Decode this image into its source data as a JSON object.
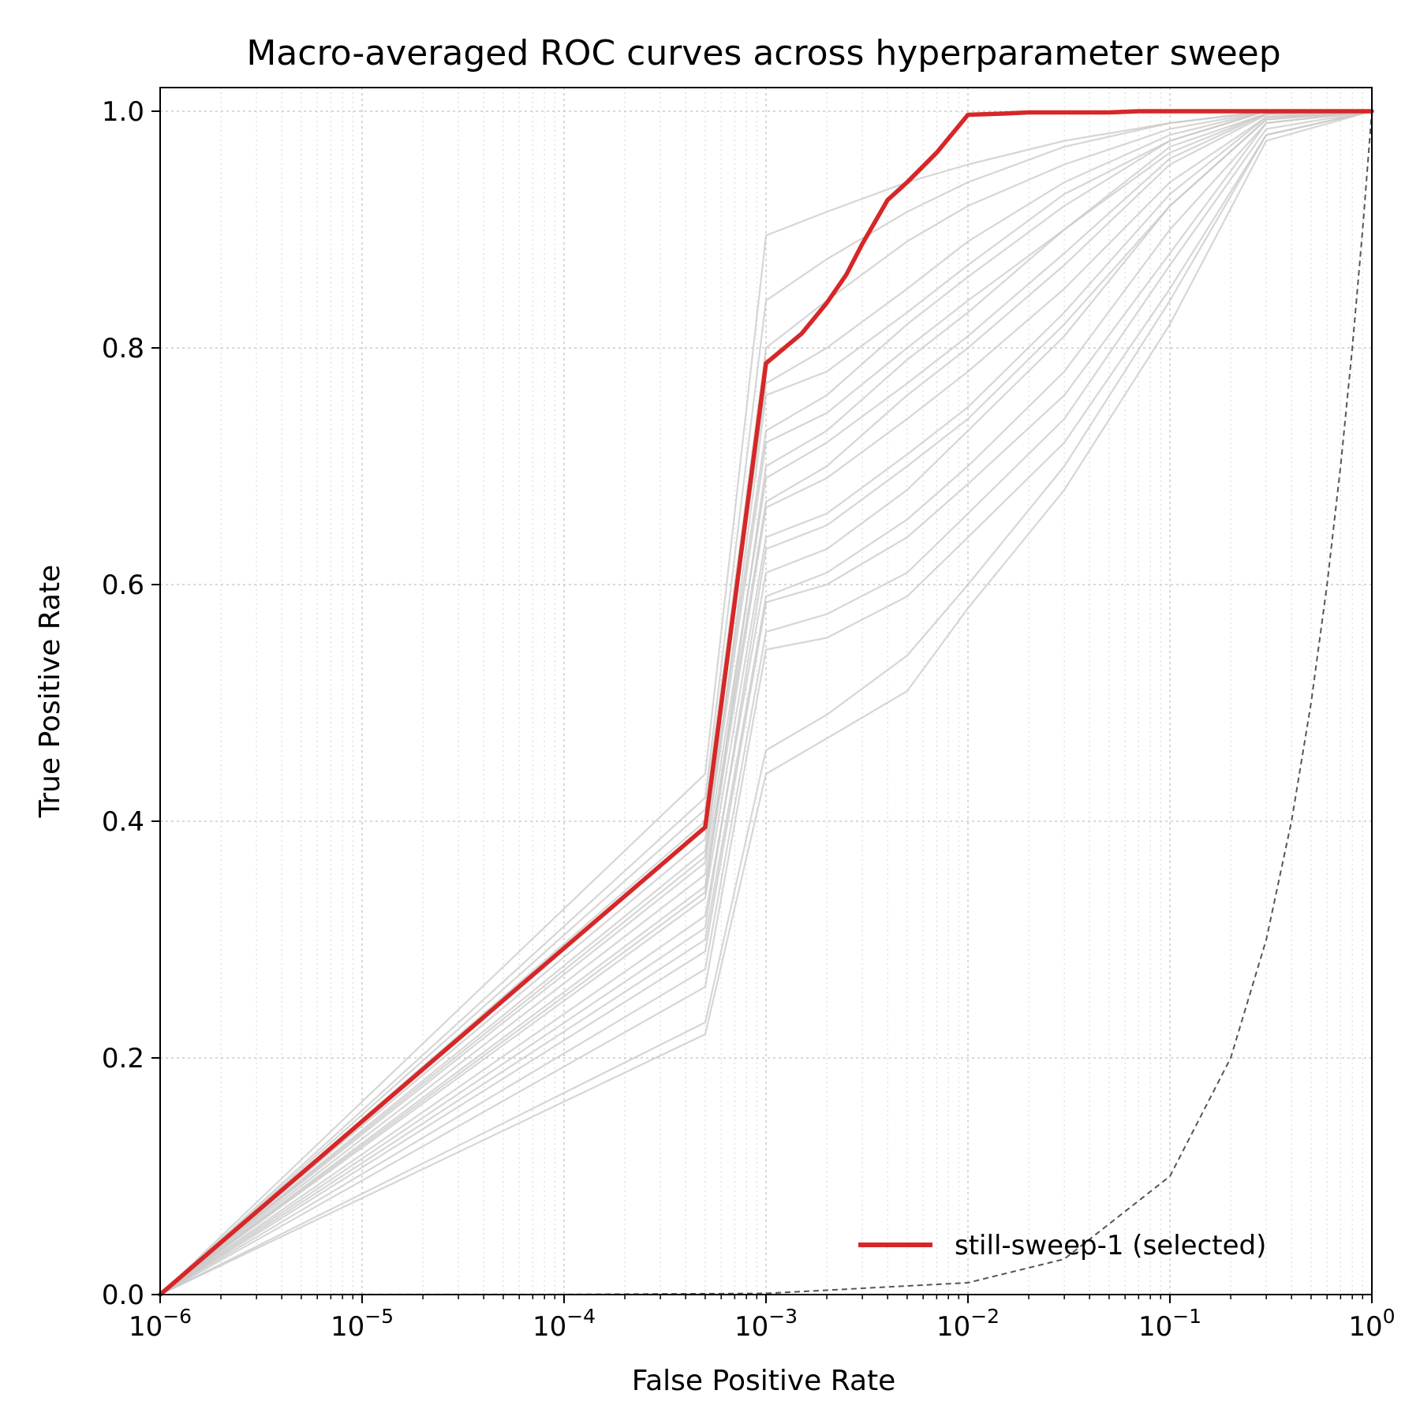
{
  "chart_data": {
    "type": "line",
    "title": "Macro-averaged ROC curves across hyperparameter sweep",
    "xlabel": "False Positive Rate",
    "ylabel": "True Positive Rate",
    "xscale": "log",
    "xlim": [
      1e-06,
      1
    ],
    "ylim": [
      0,
      1.02
    ],
    "grid": "on (dotted, major and minor)",
    "legend": {
      "placement": "lower-right",
      "entries": [
        "still-sweep-1 (selected)"
      ]
    },
    "x_ticks": [
      {
        "value": 1e-06,
        "base": "10",
        "exp": "−6"
      },
      {
        "value": 1e-05,
        "base": "10",
        "exp": "−5"
      },
      {
        "value": 0.0001,
        "base": "10",
        "exp": "−4"
      },
      {
        "value": 0.001,
        "base": "10",
        "exp": "−3"
      },
      {
        "value": 0.01,
        "base": "10",
        "exp": "−2"
      },
      {
        "value": 0.1,
        "base": "10",
        "exp": "−1"
      },
      {
        "value": 1,
        "base": "10",
        "exp": "0"
      }
    ],
    "y_ticks": [
      {
        "value": 0.0,
        "label": "0.0"
      },
      {
        "value": 0.2,
        "label": "0.2"
      },
      {
        "value": 0.4,
        "label": "0.4"
      },
      {
        "value": 0.6,
        "label": "0.6"
      },
      {
        "value": 0.8,
        "label": "0.8"
      },
      {
        "value": 1.0,
        "label": "1.0"
      }
    ],
    "selected_series": {
      "name": "still-sweep-1 (selected)",
      "color": "#d62728",
      "x": [
        1e-06,
        0.0005,
        0.001,
        0.0015,
        0.002,
        0.0025,
        0.003,
        0.004,
        0.005,
        0.007,
        0.01,
        0.015,
        0.02,
        0.05,
        0.07,
        0.1,
        0.2,
        0.5,
        1
      ],
      "y": [
        0.0,
        0.395,
        0.787,
        0.812,
        0.838,
        0.862,
        0.888,
        0.925,
        0.94,
        0.965,
        0.997,
        0.998,
        0.999,
        0.999,
        1.0,
        1.0,
        1.0,
        1.0,
        1.0
      ]
    },
    "sweep_series_color": "#c8c8c8",
    "sweep_series": [
      {
        "x": [
          1e-06,
          0.0005,
          0.001,
          0.002,
          0.005,
          0.01,
          0.03,
          0.1,
          0.3,
          1
        ],
        "y": [
          0.0,
          0.44,
          0.895,
          0.915,
          0.94,
          0.955,
          0.975,
          0.99,
          1.0,
          1.0
        ]
      },
      {
        "x": [
          1e-06,
          0.0005,
          0.001,
          0.002,
          0.005,
          0.01,
          0.03,
          0.1,
          0.3,
          1
        ],
        "y": [
          0.0,
          0.42,
          0.84,
          0.875,
          0.915,
          0.94,
          0.97,
          0.99,
          1.0,
          1.0
        ]
      },
      {
        "x": [
          1e-06,
          0.0005,
          0.001,
          0.002,
          0.005,
          0.01,
          0.03,
          0.1,
          0.3,
          1
        ],
        "y": [
          0.0,
          0.41,
          0.8,
          0.84,
          0.89,
          0.92,
          0.955,
          0.985,
          1.0,
          1.0
        ]
      },
      {
        "x": [
          1e-06,
          0.0005,
          0.001,
          0.002,
          0.005,
          0.01,
          0.03,
          0.1,
          0.3,
          1
        ],
        "y": [
          0.0,
          0.4,
          0.77,
          0.8,
          0.85,
          0.89,
          0.94,
          0.98,
          1.0,
          1.0
        ]
      },
      {
        "x": [
          1e-06,
          0.0005,
          0.001,
          0.002,
          0.005,
          0.01,
          0.03,
          0.1,
          0.3,
          1
        ],
        "y": [
          0.0,
          0.385,
          0.73,
          0.76,
          0.82,
          0.86,
          0.92,
          0.975,
          1.0,
          1.0
        ]
      },
      {
        "x": [
          1e-06,
          0.0005,
          0.001,
          0.002,
          0.005,
          0.01,
          0.03,
          0.1,
          0.3,
          1
        ],
        "y": [
          0.0,
          0.375,
          0.72,
          0.745,
          0.8,
          0.84,
          0.9,
          0.97,
          0.998,
          1.0
        ]
      },
      {
        "x": [
          1e-06,
          0.0005,
          0.001,
          0.002,
          0.005,
          0.01,
          0.03,
          0.1,
          0.3,
          1
        ],
        "y": [
          0.0,
          0.365,
          0.69,
          0.72,
          0.77,
          0.81,
          0.88,
          0.96,
          0.998,
          1.0
        ]
      },
      {
        "x": [
          1e-06,
          0.0005,
          0.001,
          0.002,
          0.005,
          0.01,
          0.03,
          0.1,
          0.3,
          1
        ],
        "y": [
          0.0,
          0.355,
          0.67,
          0.7,
          0.76,
          0.8,
          0.87,
          0.955,
          0.997,
          1.0
        ]
      },
      {
        "x": [
          1e-06,
          0.0005,
          0.001,
          0.002,
          0.005,
          0.01,
          0.03,
          0.1,
          0.3,
          1
        ],
        "y": [
          0.0,
          0.345,
          0.665,
          0.69,
          0.74,
          0.78,
          0.85,
          0.94,
          0.995,
          1.0
        ]
      },
      {
        "x": [
          1e-06,
          0.0005,
          0.001,
          0.002,
          0.005,
          0.01,
          0.03,
          0.1,
          0.3,
          1
        ],
        "y": [
          0.0,
          0.335,
          0.64,
          0.66,
          0.71,
          0.75,
          0.83,
          0.93,
          0.995,
          1.0
        ]
      },
      {
        "x": [
          1e-06,
          0.0005,
          0.001,
          0.002,
          0.005,
          0.01,
          0.03,
          0.1,
          0.3,
          1
        ],
        "y": [
          0.0,
          0.32,
          0.61,
          0.63,
          0.68,
          0.73,
          0.81,
          0.92,
          0.993,
          1.0
        ]
      },
      {
        "x": [
          1e-06,
          0.0005,
          0.001,
          0.002,
          0.005,
          0.01,
          0.03,
          0.1,
          0.3,
          1
        ],
        "y": [
          0.0,
          0.3,
          0.59,
          0.61,
          0.655,
          0.7,
          0.78,
          0.9,
          0.99,
          1.0
        ]
      },
      {
        "x": [
          1e-06,
          0.0005,
          0.001,
          0.002,
          0.005,
          0.01,
          0.03,
          0.1,
          0.3,
          1
        ],
        "y": [
          0.0,
          0.29,
          0.585,
          0.6,
          0.64,
          0.685,
          0.76,
          0.88,
          0.99,
          1.0
        ]
      },
      {
        "x": [
          1e-06,
          0.0005,
          0.001,
          0.002,
          0.005,
          0.01,
          0.03,
          0.1,
          0.3,
          1
        ],
        "y": [
          0.0,
          0.275,
          0.56,
          0.575,
          0.61,
          0.66,
          0.74,
          0.87,
          0.985,
          1.0
        ]
      },
      {
        "x": [
          1e-06,
          0.0005,
          0.001,
          0.002,
          0.005,
          0.01,
          0.03,
          0.1,
          0.3,
          1
        ],
        "y": [
          0.0,
          0.26,
          0.545,
          0.555,
          0.59,
          0.64,
          0.72,
          0.85,
          0.98,
          1.0
        ]
      },
      {
        "x": [
          1e-06,
          0.0005,
          0.001,
          0.002,
          0.005,
          0.01,
          0.03,
          0.1,
          0.3,
          1
        ],
        "y": [
          0.0,
          0.23,
          0.46,
          0.49,
          0.54,
          0.6,
          0.7,
          0.84,
          0.98,
          1.0
        ]
      },
      {
        "x": [
          1e-06,
          0.0005,
          0.001,
          0.002,
          0.005,
          0.01,
          0.03,
          0.1,
          0.3,
          1
        ],
        "y": [
          0.0,
          0.22,
          0.44,
          0.47,
          0.51,
          0.58,
          0.68,
          0.82,
          0.975,
          1.0
        ]
      },
      {
        "x": [
          1e-06,
          0.0005,
          0.001,
          0.002,
          0.005,
          0.01,
          0.03,
          0.1,
          0.3,
          1
        ],
        "y": [
          0.0,
          0.37,
          0.76,
          0.78,
          0.83,
          0.87,
          0.93,
          0.975,
          1.0,
          1.0
        ]
      },
      {
        "x": [
          1e-06,
          0.0005,
          0.001,
          0.002,
          0.005,
          0.01,
          0.03,
          0.1,
          0.3,
          1
        ],
        "y": [
          0.0,
          0.34,
          0.7,
          0.73,
          0.79,
          0.83,
          0.9,
          0.965,
          0.998,
          1.0
        ]
      },
      {
        "x": [
          1e-06,
          0.0005,
          0.001,
          0.002,
          0.005,
          0.01,
          0.03,
          0.1,
          0.3,
          1
        ],
        "y": [
          0.0,
          0.31,
          0.63,
          0.65,
          0.7,
          0.74,
          0.82,
          0.92,
          0.993,
          1.0
        ]
      }
    ],
    "chance_line": {
      "style": "dashed",
      "color": "#555555",
      "x": [
        1e-06,
        0.0001,
        0.001,
        0.01,
        0.03,
        0.1,
        0.2,
        0.3,
        0.4,
        0.5,
        0.6,
        0.7,
        0.8,
        0.9,
        1
      ],
      "y": [
        1e-06,
        0.0001,
        0.001,
        0.01,
        0.03,
        0.1,
        0.2,
        0.3,
        0.4,
        0.5,
        0.6,
        0.7,
        0.8,
        0.9,
        1
      ]
    }
  }
}
